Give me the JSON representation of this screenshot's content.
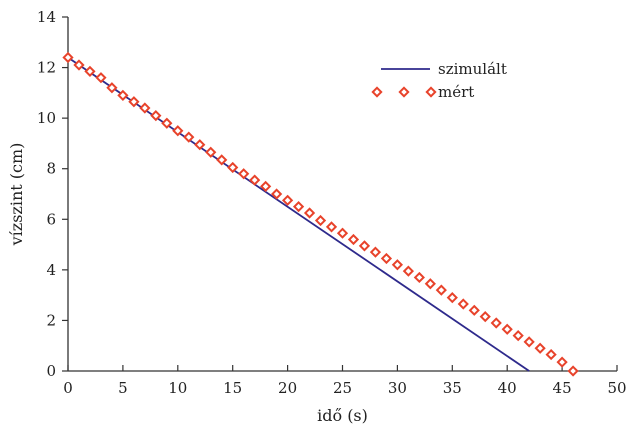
{
  "chart_data": {
    "type": "line",
    "xlabel": "idő (s)",
    "ylabel": "vízszint (cm)",
    "xlim": [
      0,
      50
    ],
    "ylim": [
      0,
      14
    ],
    "xticks": [
      0,
      5,
      10,
      15,
      20,
      25,
      30,
      35,
      40,
      45,
      50
    ],
    "yticks": [
      0,
      2,
      4,
      6,
      8,
      10,
      12,
      14
    ],
    "grid": false,
    "legend_position": "top-right",
    "series": [
      {
        "name": "szimulált",
        "style": "line",
        "color": "#2e2a8c",
        "x": [
          0,
          42
        ],
        "y": [
          12.4,
          0
        ]
      },
      {
        "name": "mért",
        "style": "diamond-markers",
        "color": "#e8432b",
        "x": [
          0,
          1,
          2,
          3,
          4,
          5,
          6,
          7,
          8,
          9,
          10,
          11,
          12,
          13,
          14,
          15,
          16,
          17,
          18,
          19,
          20,
          21,
          22,
          23,
          24,
          25,
          26,
          27,
          28,
          29,
          30,
          31,
          32,
          33,
          34,
          35,
          36,
          37,
          38,
          39,
          40,
          41,
          42,
          43,
          44,
          45,
          46
        ],
        "y": [
          12.4,
          12.1,
          11.85,
          11.6,
          11.2,
          10.9,
          10.65,
          10.4,
          10.1,
          9.8,
          9.5,
          9.25,
          8.95,
          8.65,
          8.35,
          8.05,
          7.8,
          7.55,
          7.3,
          7.0,
          6.75,
          6.5,
          6.25,
          5.95,
          5.7,
          5.45,
          5.2,
          4.95,
          4.7,
          4.45,
          4.2,
          3.95,
          3.7,
          3.45,
          3.2,
          2.9,
          2.65,
          2.4,
          2.15,
          1.9,
          1.65,
          1.4,
          1.15,
          0.9,
          0.65,
          0.35,
          0.0
        ]
      }
    ]
  }
}
